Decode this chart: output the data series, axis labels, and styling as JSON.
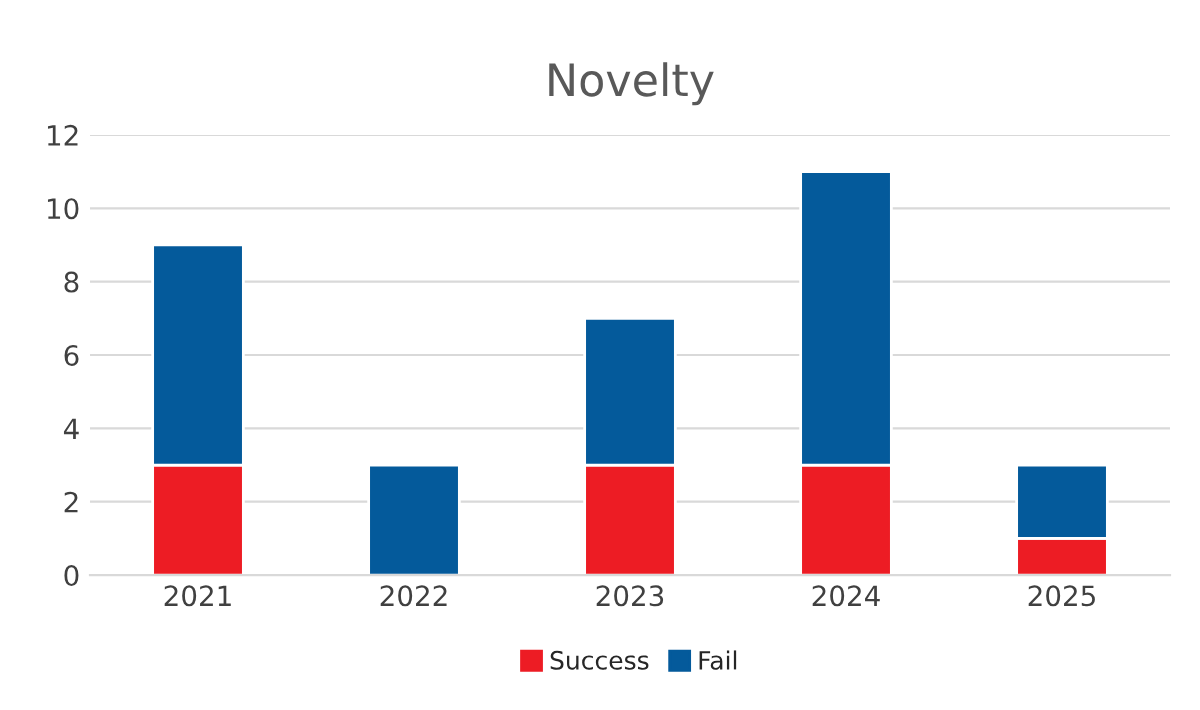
{
  "chart_data": {
    "type": "bar",
    "title": "Novelty",
    "stacked": true,
    "categories": [
      "2021",
      "2022",
      "2023",
      "2024",
      "2025"
    ],
    "series": [
      {
        "name": "Success",
        "color": "#ed1c24",
        "values": [
          3,
          0,
          3,
          3,
          1
        ]
      },
      {
        "name": "Fail",
        "color": "#045a9b",
        "values": [
          6,
          3,
          4,
          8,
          2
        ]
      }
    ],
    "ylim": [
      0,
      12
    ],
    "yticks": [
      0,
      2,
      4,
      6,
      8,
      10,
      12
    ],
    "grid": "y",
    "legend": "bottom"
  }
}
